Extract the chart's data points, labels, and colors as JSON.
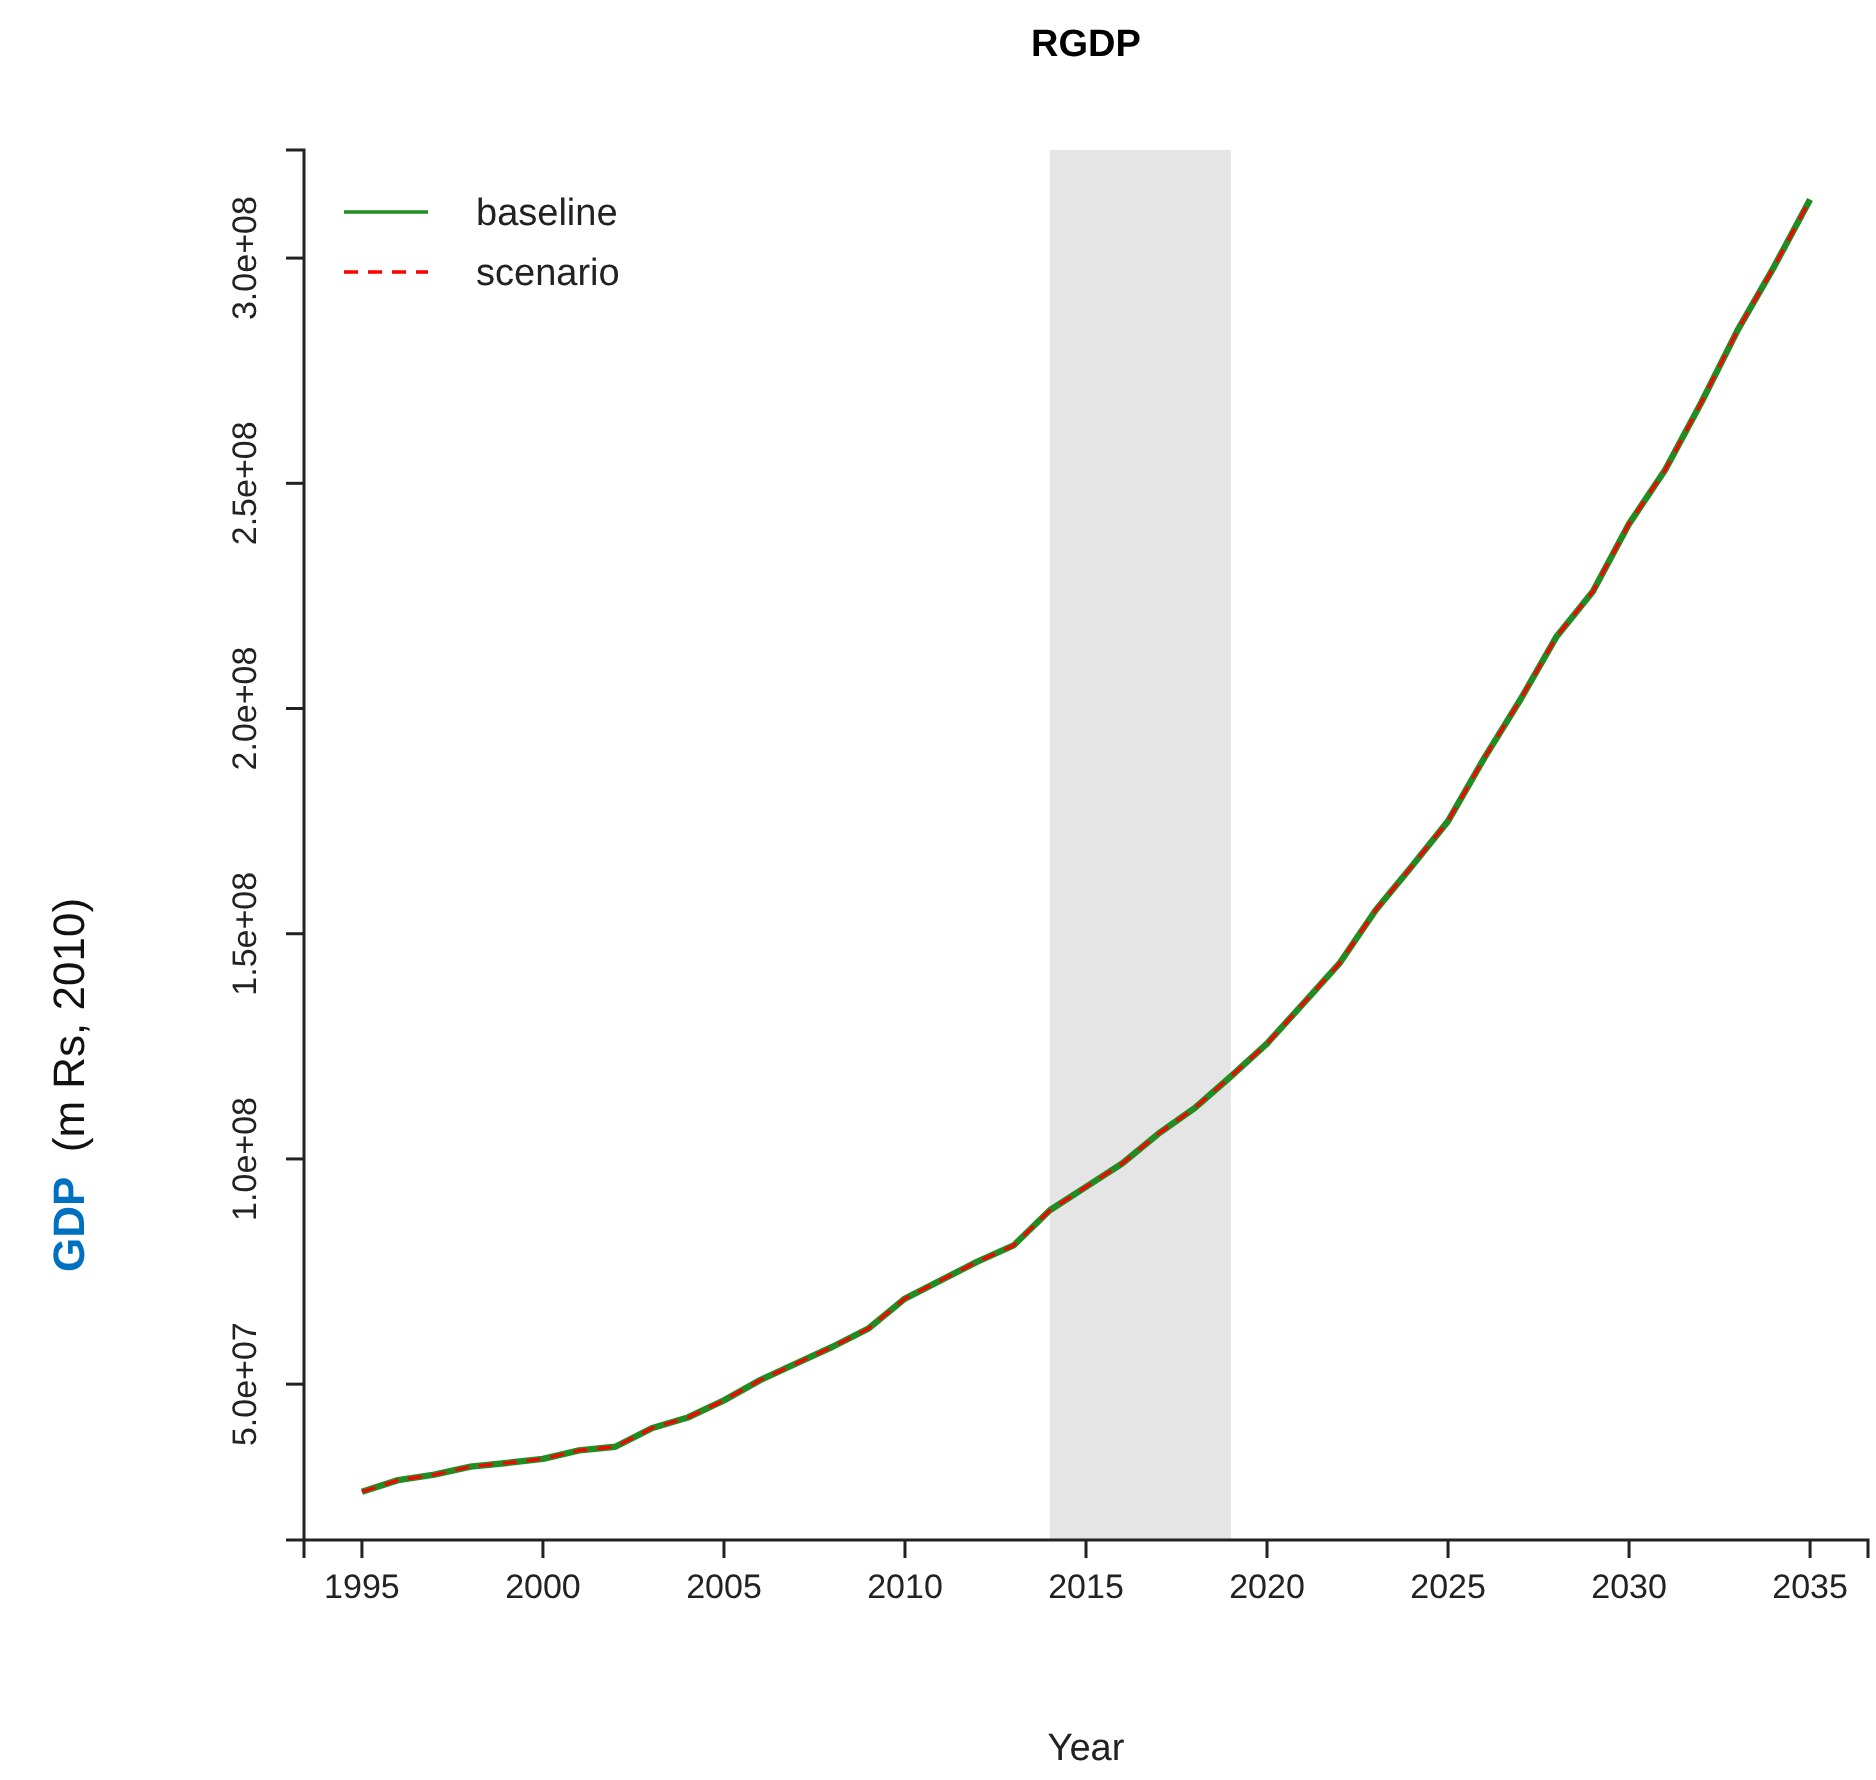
{
  "chart_data": {
    "type": "line",
    "title": "RGDP",
    "xlabel": "Year",
    "ylabel": "GDP  (m Rs, 2010)",
    "x": [
      1995,
      1996,
      1997,
      1998,
      1999,
      2000,
      2001,
      2002,
      2003,
      2004,
      2005,
      2006,
      2007,
      2008,
      2009,
      2010,
      2011,
      2012,
      2013,
      2014,
      2015,
      2016,
      2017,
      2018,
      2019,
      2020,
      2021,
      2022,
      2023,
      2024,
      2025,
      2026,
      2027,
      2028,
      2029,
      2030,
      2031,
      2032,
      2033,
      2034,
      2035
    ],
    "series": [
      {
        "name": "baseline",
        "color": "#228b22",
        "line_style": "solid",
        "values": [
          26100000,
          28700000,
          29900000,
          31700000,
          32500000,
          33400000,
          35300000,
          36100000,
          40200000,
          42600000,
          46400000,
          50900000,
          54600000,
          58300000,
          62400000,
          69000000,
          73100000,
          77200000,
          80800000,
          88600000,
          93800000,
          99000000,
          105600000,
          111300000,
          118300000,
          125600000,
          134500000,
          143400000,
          155200000,
          165000000,
          175000000,
          189000000,
          202000000,
          216000000,
          226000000,
          241000000,
          253000000,
          268000000,
          284000000,
          298000000,
          313000000
        ]
      },
      {
        "name": "scenario",
        "color": "#ff0000",
        "line_style": "dashed",
        "values": [
          26100000,
          28700000,
          29900000,
          31700000,
          32500000,
          33400000,
          35300000,
          36100000,
          40200000,
          42600000,
          46400000,
          50900000,
          54600000,
          58300000,
          62400000,
          69000000,
          73100000,
          77200000,
          80800000,
          88600000,
          93800000,
          99000000,
          105600000,
          111300000,
          118300000,
          125600000,
          134500000,
          143400000,
          155200000,
          165000000,
          175000000,
          189000000,
          202000000,
          216000000,
          226000000,
          241000000,
          253000000,
          268000000,
          284000000,
          298000000,
          313000000
        ]
      }
    ],
    "xlim": [
      1993.4,
      2036.6
    ],
    "xticks": [
      1995,
      2000,
      2005,
      2010,
      2015,
      2020,
      2025,
      2030,
      2035
    ],
    "ylim": [
      15400000,
      324000000
    ],
    "yticks": [
      {
        "value": 50000000,
        "label": "5.0e+07"
      },
      {
        "value": 100000000,
        "label": "1.0e+08"
      },
      {
        "value": 150000000,
        "label": "1.5e+08"
      },
      {
        "value": 200000000,
        "label": "2.0e+08"
      },
      {
        "value": 250000000,
        "label": "2.5e+08"
      },
      {
        "value": 300000000,
        "label": "3.0e+08"
      }
    ],
    "bands": [
      {
        "axis": "x",
        "from": 2014,
        "to": 2019,
        "color": "#e5e5e5"
      }
    ],
    "legend": "top left",
    "grid": false
  }
}
